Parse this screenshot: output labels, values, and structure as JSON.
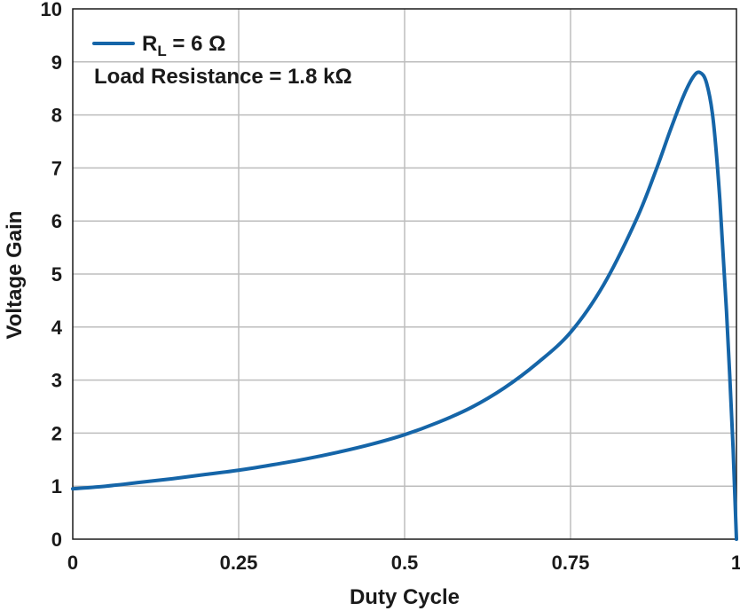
{
  "chart_data": {
    "type": "line",
    "xlabel": "Duty Cycle",
    "ylabel": "Voltage Gain",
    "xlim": [
      0,
      1
    ],
    "ylim": [
      0,
      10
    ],
    "xticks": [
      0,
      0.25,
      0.5,
      0.75,
      1
    ],
    "xtick_labels": [
      "0",
      "0.25",
      "0.5",
      "0.75",
      "1"
    ],
    "yticks": [
      0,
      1,
      2,
      3,
      4,
      5,
      6,
      7,
      8,
      9,
      10
    ],
    "ytick_labels": [
      "0",
      "1",
      "2",
      "3",
      "4",
      "5",
      "6",
      "7",
      "8",
      "9",
      "10"
    ],
    "grid": true,
    "legend_position": "top-left",
    "legend": {
      "series_label_main": "R",
      "series_label_sub": "L",
      "series_label_rest": " = 6 Ω",
      "note": "Load Resistance = 1.8 kΩ"
    },
    "series": [
      {
        "color": "#1565a8",
        "x": [
          0,
          0.05,
          0.1,
          0.15,
          0.2,
          0.25,
          0.3,
          0.35,
          0.4,
          0.45,
          0.5,
          0.55,
          0.6,
          0.65,
          0.7,
          0.75,
          0.8,
          0.85,
          0.88,
          0.9,
          0.92,
          0.935,
          0.945,
          0.955,
          0.965,
          0.975,
          0.985,
          0.995,
          1.0
        ],
        "y": [
          0.95,
          1.0,
          1.07,
          1.14,
          1.22,
          1.3,
          1.4,
          1.51,
          1.64,
          1.79,
          1.97,
          2.2,
          2.48,
          2.85,
          3.32,
          3.9,
          4.8,
          6.05,
          7.0,
          7.7,
          8.35,
          8.72,
          8.8,
          8.6,
          7.9,
          6.4,
          4.3,
          1.7,
          0
        ]
      }
    ]
  }
}
